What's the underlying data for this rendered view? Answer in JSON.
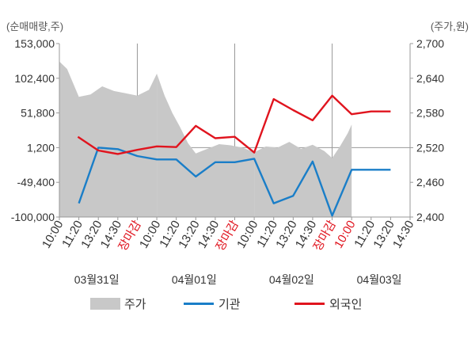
{
  "chart_data": {
    "type": "line",
    "title": "",
    "left_unit": "(순매매량,주)",
    "right_unit": "(주가,원)",
    "left_axis": {
      "ticks": [
        "153,000",
        "102,400",
        "51,800",
        "1,200",
        "-49,400",
        "-100,000"
      ],
      "values": [
        153000,
        102400,
        51800,
        1200,
        -49400,
        -100000
      ],
      "ylim": [
        -100000,
        153000
      ]
    },
    "right_axis": {
      "ticks": [
        "2,700",
        "2,640",
        "2,580",
        "2,520",
        "2,460",
        "2,400"
      ],
      "values": [
        2700,
        2640,
        2580,
        2520,
        2460,
        2400
      ],
      "ylim": [
        2400,
        2700
      ]
    },
    "x_ticks": [
      "10:00",
      "11:20",
      "13:20",
      "14:30",
      "장마감",
      "10:00",
      "11:20",
      "13:20",
      "14:30",
      "장마감",
      "10:00",
      "11:20",
      "13:20",
      "14:30",
      "장마감",
      "10:00",
      "11:20",
      "13:20",
      "14:30"
    ],
    "x_tick_highlight": [
      false,
      false,
      false,
      false,
      true,
      false,
      false,
      false,
      false,
      true,
      false,
      false,
      false,
      false,
      true,
      true,
      false,
      false,
      false
    ],
    "dates": [
      "03월31일",
      "04월01일",
      "04월02일",
      "04월03일"
    ],
    "legend": [
      "주가",
      "기관",
      "외국인"
    ],
    "colors": {
      "price": "#c8c8c8",
      "institution": "#1a7ec8",
      "foreign": "#e0141e",
      "close_label": "#e0141e",
      "axis_text": "#333333",
      "grid": "#999999"
    },
    "series": [
      {
        "name": "기관",
        "axis": "left",
        "x": [
          1,
          2,
          3,
          4,
          5,
          6,
          7,
          8,
          9,
          10,
          11,
          12,
          13,
          14,
          15,
          16,
          17
        ],
        "values": [
          -80000,
          1200,
          -1000,
          -11000,
          -16000,
          -16000,
          -41000,
          -20000,
          -20000,
          -15000,
          -80000,
          -69000,
          -19000,
          -98000,
          -31000,
          -31000,
          -31000
        ]
      },
      {
        "name": "외국인",
        "axis": "left",
        "x": [
          0.95,
          2,
          3,
          4,
          5,
          6,
          7,
          8,
          9,
          10,
          11,
          12,
          13,
          14,
          15,
          16,
          17
        ],
        "values": [
          17000,
          -3000,
          -8000,
          -2000,
          3000,
          2000,
          33000,
          15000,
          17000,
          -6000,
          72000,
          56000,
          41000,
          77000,
          50000,
          54000,
          54000
        ]
      },
      {
        "name": "주가",
        "axis": "right",
        "segments": [
          {
            "x": [
              0.0,
              0.4,
              1.0,
              1.6,
              2.2,
              2.8,
              3.4,
              4.0,
              4.6,
              5.0
            ],
            "values": [
              2669,
              2656,
              2608,
              2612,
              2626,
              2618,
              2614,
              2610,
              2620,
              2648
            ]
          },
          {
            "x": [
              5.0,
              5.4,
              5.8,
              6.2,
              6.6,
              7.0,
              7.6,
              8.2,
              8.8,
              9.4,
              10.0
            ],
            "values": [
              2648,
              2610,
              2580,
              2555,
              2528,
              2510,
              2518,
              2526,
              2524,
              2520,
              2512
            ]
          },
          {
            "x": [
              10.0,
              10.6,
              11.2,
              11.8,
              12.4,
              13.0,
              13.6,
              14.0,
              14.4,
              14.8,
              15.0
            ],
            "values": [
              2512,
              2522,
              2520,
              2530,
              2518,
              2525,
              2514,
              2502,
              2522,
              2545,
              2560
            ]
          }
        ]
      }
    ]
  }
}
